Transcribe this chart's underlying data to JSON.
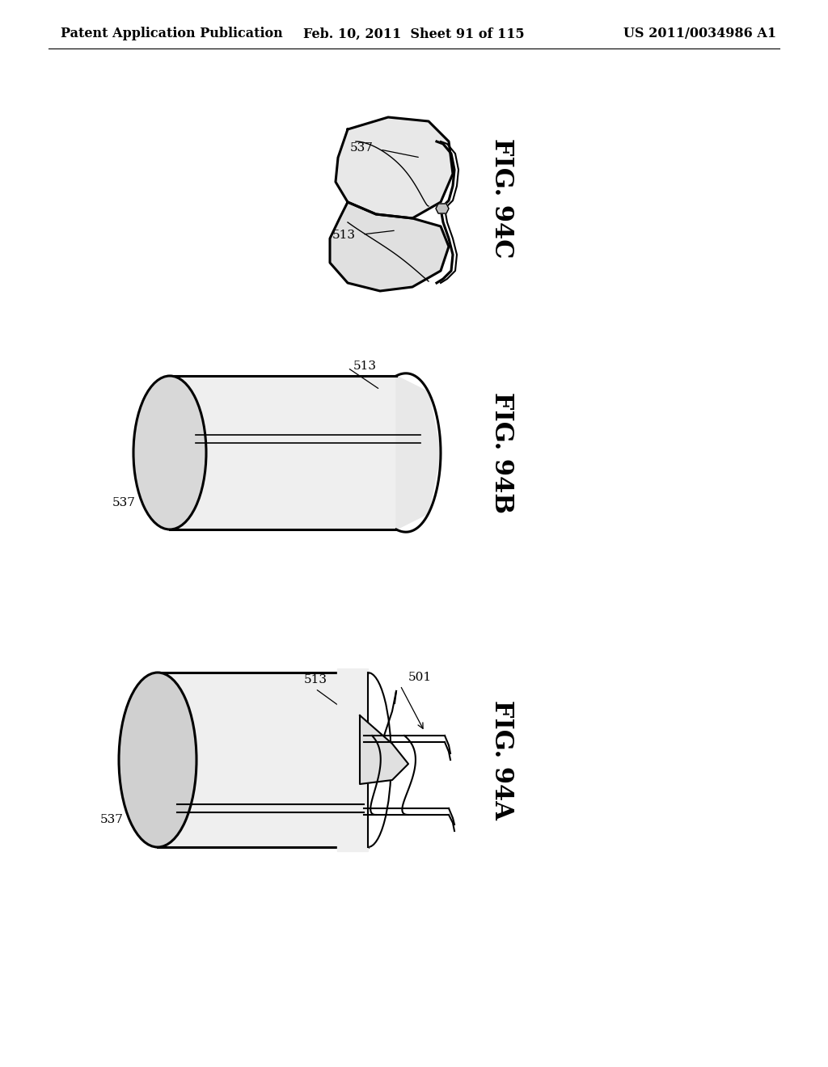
{
  "background_color": "#ffffff",
  "header_left": "Patent Application Publication",
  "header_center": "Feb. 10, 2011  Sheet 91 of 115",
  "header_right": "US 2011/0034986 A1",
  "header_fontsize": 11.5,
  "fig_label_fontsize": 22,
  "ref_fontsize": 11,
  "lw_thick": 2.2,
  "lw_medium": 1.5,
  "lw_thin": 1.0
}
